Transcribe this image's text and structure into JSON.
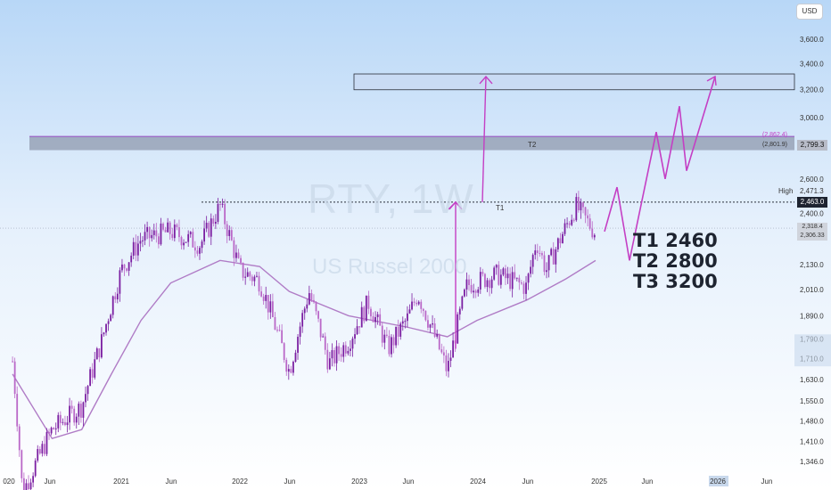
{
  "currency": "USD",
  "watermark": {
    "symbol": "RTY, 1W",
    "name": "US Russel 2000"
  },
  "targets": [
    "T1 2460",
    "T2 2800",
    "T3 3200"
  ],
  "colors": {
    "candle": "#9c27b0",
    "ma": "#b07cc6",
    "projection": "#c43fc4",
    "zone": "#8a94a8"
  },
  "chart_data": {
    "type": "candlestick",
    "title": "",
    "ylim": [
      1320,
      3800
    ],
    "y_scale": "log",
    "y_ticks": [
      "3,600.0",
      "3,400.0",
      "3,200.0",
      "3,000.0",
      "2,800.0",
      "2,600.0",
      "2,400.0",
      "2,130.0",
      "2,010.0",
      "1,890.0",
      "1,790.0",
      "1,710.0",
      "1,630.0",
      "1,550.0",
      "1,480.0",
      "1,410.0",
      "1,346.0"
    ],
    "x_ticks": [
      "020",
      "Jun",
      "2021",
      "Jun",
      "2022",
      "Jun",
      "2023",
      "Jun",
      "2024",
      "Jun",
      "2025",
      "Jun",
      "2026",
      "Jun"
    ],
    "price_tags": {
      "high_label": "High",
      "high_value": "2,471.3",
      "last": "2,463.0",
      "zone_top": "(2,862.4)",
      "zone_mid": "(2,801.9)",
      "zone_right": "2,799.3",
      "price_a": "2,318.4",
      "price_b": "2,306.33"
    },
    "zones": [
      {
        "name": "T2",
        "low": 2780,
        "high": 2870
      },
      {
        "name": "",
        "low": 3200,
        "high": 3320
      }
    ],
    "levels": [
      {
        "name": "T1",
        "value": 2463
      }
    ],
    "series": [
      {
        "type": "candles",
        "note": "weekly closes approximated",
        "key_points": [
          [
            "2020-02",
            1700
          ],
          [
            "2020-03",
            1250
          ],
          [
            "2020-06",
            1450
          ],
          [
            "2020-09",
            1530
          ],
          [
            "2020-11",
            1780
          ],
          [
            "2021-01",
            2100
          ],
          [
            "2021-03",
            2260
          ],
          [
            "2021-06",
            2300
          ],
          [
            "2021-09",
            2230
          ],
          [
            "2021-11",
            2440
          ],
          [
            "2022-01",
            2100
          ],
          [
            "2022-03",
            2050
          ],
          [
            "2022-06",
            1660
          ],
          [
            "2022-08",
            2000
          ],
          [
            "2022-10",
            1690
          ],
          [
            "2022-12",
            1780
          ],
          [
            "2023-02",
            1950
          ],
          [
            "2023-04",
            1750
          ],
          [
            "2023-06",
            1880
          ],
          [
            "2023-07",
            1990
          ],
          [
            "2023-10",
            1660
          ],
          [
            "2023-12",
            2030
          ],
          [
            "2024-03",
            2080
          ],
          [
            "2024-06",
            2020
          ],
          [
            "2024-07",
            2250
          ],
          [
            "2024-08",
            2100
          ],
          [
            "2024-11",
            2440
          ],
          [
            "2025-01",
            2290
          ]
        ]
      },
      {
        "type": "moving-average",
        "key_points": [
          [
            "2020-02",
            1650
          ],
          [
            "2020-06",
            1420
          ],
          [
            "2020-09",
            1450
          ],
          [
            "2020-12",
            1650
          ],
          [
            "2021-03",
            1870
          ],
          [
            "2021-06",
            2040
          ],
          [
            "2021-11",
            2150
          ],
          [
            "2022-03",
            2120
          ],
          [
            "2022-06",
            2000
          ],
          [
            "2022-12",
            1890
          ],
          [
            "2023-06",
            1840
          ],
          [
            "2023-10",
            1800
          ],
          [
            "2024-01",
            1870
          ],
          [
            "2024-06",
            1960
          ],
          [
            "2024-10",
            2060
          ],
          [
            "2025-01",
            2150
          ]
        ]
      },
      {
        "type": "projection",
        "key_points": [
          [
            "2023-12",
            1750
          ],
          [
            "2024-01",
            2463
          ],
          [
            "2024-01",
            2463
          ],
          [
            "2024-02",
            3300
          ]
        ]
      },
      {
        "type": "projection",
        "key_points": [
          [
            "2025-01",
            2300
          ],
          [
            "2025-02",
            2550
          ],
          [
            "2025-03",
            2150
          ],
          [
            "2025-06",
            2900
          ],
          [
            "2025-07",
            2600
          ],
          [
            "2025-08",
            3080
          ],
          [
            "2025-09",
            2650
          ],
          [
            "2025-12",
            3300
          ]
        ]
      }
    ]
  }
}
